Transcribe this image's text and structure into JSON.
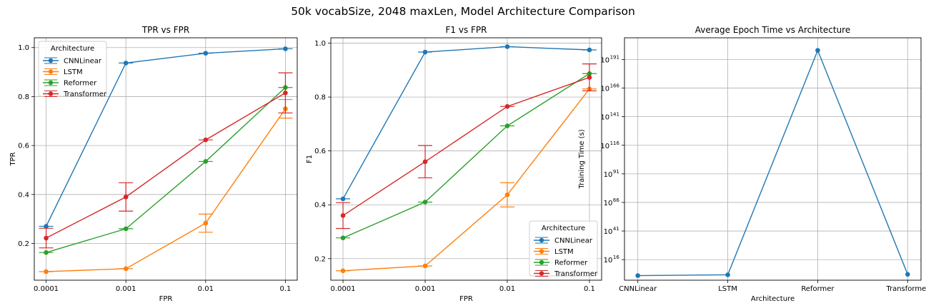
{
  "figure": {
    "suptitle": "50k vocabSize, 2048 maxLen, Model Architecture Comparison"
  },
  "colors": {
    "CNNLinear": "#1f77b4",
    "LSTM": "#ff7f0e",
    "Reformer": "#2ca02c",
    "Transformer": "#d62728",
    "grid": "#b0b0b0"
  },
  "chart_data": [
    {
      "type": "line",
      "title": "TPR vs FPR",
      "xlabel": "FPR",
      "ylabel": "TPR",
      "x": [
        "0.0001",
        "0.001",
        "0.01",
        "0.1"
      ],
      "ylim": [
        0.05,
        1.04
      ],
      "yticks": [
        0.2,
        0.4,
        0.6,
        0.8,
        1.0
      ],
      "ytick_labels": [
        "0.2",
        "0.4",
        "0.6",
        "0.8",
        "1.0"
      ],
      "grid": true,
      "legend": {
        "title": "Architecture",
        "position": "upper-left"
      },
      "series": [
        {
          "name": "CNNLinear",
          "values": [
            0.27,
            0.937,
            0.977,
            0.995
          ],
          "errors": [
            0.0,
            0.0,
            0.0,
            0.0
          ]
        },
        {
          "name": "LSTM",
          "values": [
            0.085,
            0.097,
            0.283,
            0.75
          ],
          "errors": [
            0.0,
            0.0,
            0.037,
            0.038
          ]
        },
        {
          "name": "Reformer",
          "values": [
            0.163,
            0.26,
            0.535,
            0.837
          ],
          "errors": [
            0.0,
            0.0,
            0.0,
            0.0
          ]
        },
        {
          "name": "Transformer",
          "values": [
            0.222,
            0.39,
            0.623,
            0.815
          ],
          "errors": [
            0.04,
            0.058,
            0.0,
            0.082
          ]
        }
      ]
    },
    {
      "type": "line",
      "title": "F1 vs FPR",
      "xlabel": "FPR",
      "ylabel": "F1",
      "x": [
        "0.0001",
        "0.001",
        "0.01",
        "0.1"
      ],
      "ylim": [
        0.12,
        1.02
      ],
      "yticks": [
        0.2,
        0.4,
        0.6,
        0.8,
        1.0
      ],
      "ytick_labels": [
        "0.2",
        "0.4",
        "0.6",
        "0.8",
        "1.0"
      ],
      "grid": true,
      "legend": {
        "title": "Architecture",
        "position": "lower-right"
      },
      "series": [
        {
          "name": "CNNLinear",
          "values": [
            0.422,
            0.967,
            0.987,
            0.975
          ],
          "errors": [
            0.0,
            0.0,
            0.0,
            0.0
          ]
        },
        {
          "name": "LSTM",
          "values": [
            0.155,
            0.173,
            0.437,
            0.83
          ],
          "errors": [
            0.0,
            0.0,
            0.045,
            0.0
          ]
        },
        {
          "name": "Reformer",
          "values": [
            0.277,
            0.41,
            0.693,
            0.887
          ],
          "errors": [
            0.0,
            0.0,
            0.0,
            0.0
          ]
        },
        {
          "name": "Transformer",
          "values": [
            0.36,
            0.56,
            0.765,
            0.873
          ],
          "errors": [
            0.048,
            0.06,
            0.0,
            0.05
          ]
        }
      ]
    },
    {
      "type": "line",
      "title": "Average Epoch Time vs Architecture",
      "xlabel": "Architecture",
      "ylabel": "Training Time (s)",
      "yscale": "log",
      "categories": [
        "CNNLinear",
        "LSTM",
        "Reformer",
        "Transformer"
      ],
      "ylim_exp": [
        -2,
        210
      ],
      "ytick_exps": [
        16,
        41,
        66,
        91,
        116,
        141,
        166,
        191
      ],
      "ytick_labels": [
        "10",
        "10",
        "10",
        "10",
        "10",
        "10",
        "10",
        "10"
      ],
      "ytick_superscripts": [
        "16",
        "41",
        "66",
        "91",
        "116",
        "141",
        "166",
        "191"
      ],
      "grid": true,
      "series": [
        {
          "values_exp": [
            2.0,
            2.7,
            199.0,
            3.1
          ]
        }
      ]
    }
  ]
}
